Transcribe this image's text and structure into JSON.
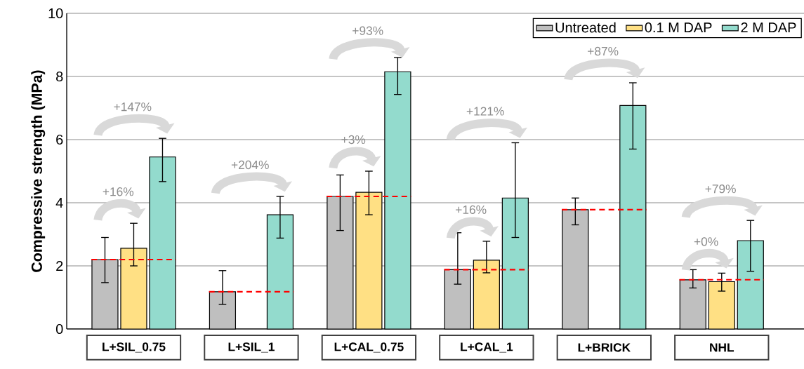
{
  "chart_data": {
    "type": "bar",
    "ylabel": "Compressive strength (MPa)",
    "categories": [
      "L+SIL_0.75",
      "L+SIL_1",
      "L+CAL_0.75",
      "L+CAL_1",
      "L+BRICK",
      "NHL"
    ],
    "series": [
      {
        "name": "Untreated",
        "color": "#bfbfbf",
        "values": [
          2.2,
          1.18,
          4.2,
          1.88,
          3.78,
          1.56
        ],
        "errors": [
          [
            1.47,
            2.9
          ],
          [
            0.78,
            1.85
          ],
          [
            3.12,
            4.88
          ],
          [
            1.42,
            3.05
          ],
          [
            3.3,
            4.15
          ],
          [
            1.3,
            1.88
          ]
        ]
      },
      {
        "name": "0.1 M DAP",
        "color": "#ffe084",
        "values": [
          2.56,
          null,
          4.33,
          2.18,
          null,
          1.5
        ],
        "errors": [
          [
            2.0,
            3.35
          ],
          null,
          [
            3.62,
            5.0
          ],
          [
            1.78,
            2.78
          ],
          null,
          [
            1.2,
            1.77
          ]
        ]
      },
      {
        "name": "2 M DAP",
        "color": "#93dbcd",
        "values": [
          5.45,
          3.62,
          8.15,
          4.15,
          7.08,
          2.8
        ],
        "errors": [
          [
            4.67,
            6.04
          ],
          [
            2.88,
            4.2
          ],
          [
            7.43,
            8.6
          ],
          [
            2.9,
            5.9
          ],
          [
            5.7,
            7.8
          ],
          [
            1.83,
            3.44
          ]
        ]
      }
    ],
    "annotations": [
      "+16%",
      "+147%",
      "+204%",
      "+3%",
      "+93%",
      "+16%",
      "+121%",
      "+87%",
      "+0%",
      "+79%"
    ],
    "ylim": [
      0,
      10
    ],
    "yticks": [
      0,
      2,
      4,
      6,
      8,
      10
    ],
    "grid": "y",
    "legend": "top right"
  }
}
